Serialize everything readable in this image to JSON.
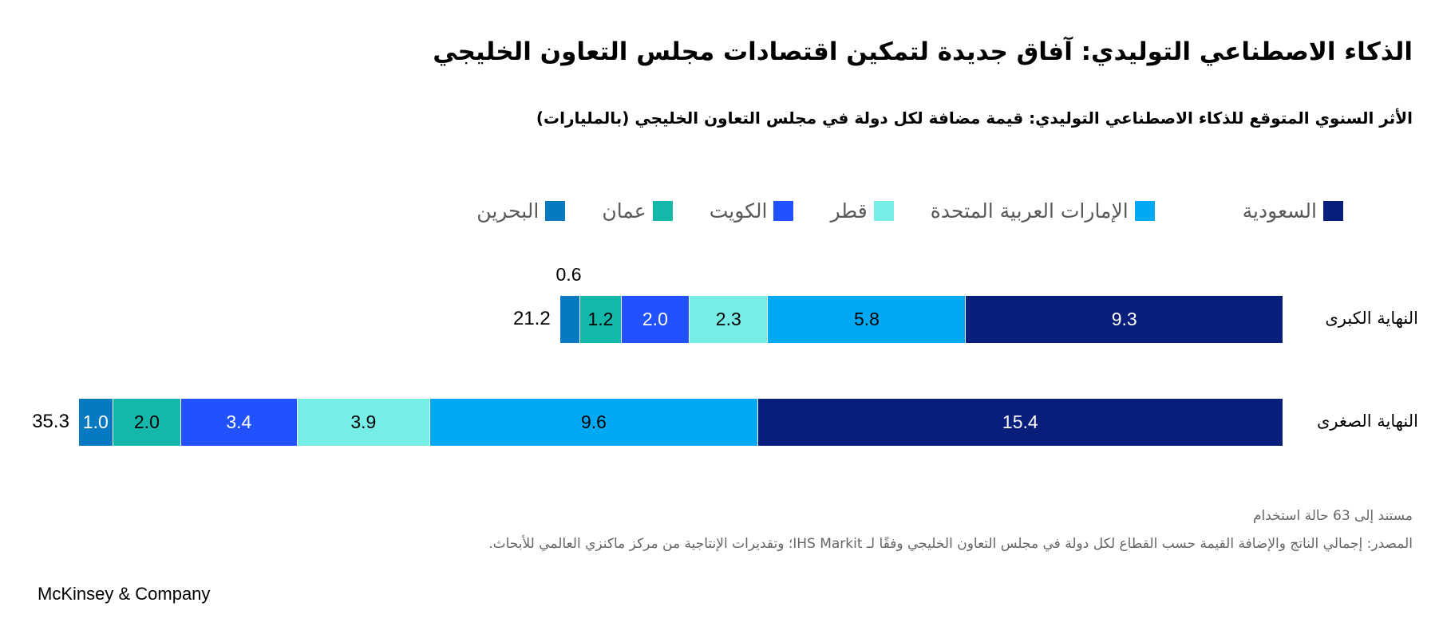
{
  "title": "الذكاء الاصطناعي التوليدي: آفاق جديدة لتمكين اقتصادات مجلس التعاون الخليجي",
  "subtitle": "الأثر السنوي المتوقع للذكاء الاصطناعي التوليدي: قيمة مضافة لكل دولة في مجلس التعاون الخليجي  (بالمليارات)",
  "note": "مستند إلى 63 حالة استخدام",
  "source": "المصدر: إجمالي الناتج والإضافة القيمة حسب القطاع لكل دولة في مجلس التعاون الخليجي وفقًا لـ IHS Markit؛ وتقديرات الإنتاجية من مركز ماكنزي العالمي للأبحاث.",
  "brand": "McKinsey & Company",
  "chart_data": {
    "type": "bar",
    "orientation": "horizontal",
    "stacked": true,
    "title": "الأثر السنوي المتوقع للذكاء الاصطناعي التوليدي: قيمة مضافة لكل دولة في مجلس التعاون الخليجي  (بالمليارات)",
    "legend_position": "top",
    "grid": false,
    "categories": [
      "النهاية الكبرى",
      "النهاية الصغرى"
    ],
    "totals": [
      "21.2",
      "35.3"
    ],
    "series": [
      {
        "name": "السعودية",
        "color": "#071f7a",
        "text_color": "#ffffff",
        "values": [
          9.3,
          15.4
        ]
      },
      {
        "name": "الإمارات العربية المتحدة",
        "color": "#00a9f4",
        "text_color": "#000000",
        "values": [
          5.8,
          9.6
        ]
      },
      {
        "name": "قطر",
        "color": "#76ede6",
        "text_color": "#000000",
        "values": [
          2.3,
          3.9
        ]
      },
      {
        "name": "الكويت",
        "color": "#2251ff",
        "text_color": "#ffffff",
        "values": [
          2.0,
          3.4
        ]
      },
      {
        "name": "عمان",
        "color": "#14b8aa",
        "text_color": "#000000",
        "values": [
          1.2,
          2.0
        ]
      },
      {
        "name": "البحرين",
        "color": "#0679c2",
        "text_color": "#ffffff",
        "values": [
          0.6,
          1.0
        ]
      }
    ]
  }
}
